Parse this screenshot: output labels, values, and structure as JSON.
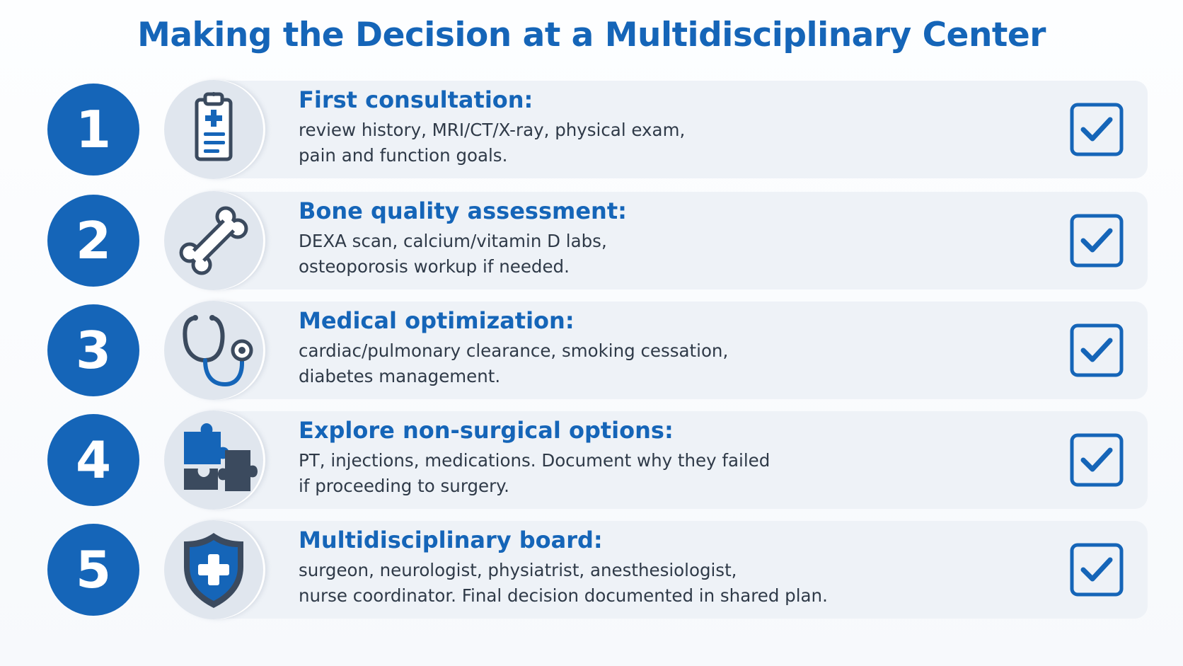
{
  "title": "Making the Decision at a Multidisciplinary Center",
  "steps": [
    {
      "number": "1",
      "icon": "clipboard-icon",
      "heading": "First consultation:",
      "lines": [
        "review history, MRI/CT/X-ray, physical exam,",
        "pain and function goals."
      ]
    },
    {
      "number": "2",
      "icon": "bone-icon",
      "heading": "Bone quality assessment:",
      "lines": [
        "DEXA scan, calcium/vitamin D labs,",
        "osteoporosis workup if needed."
      ]
    },
    {
      "number": "3",
      "icon": "stethoscope-icon",
      "heading": "Medical optimization:",
      "lines": [
        "cardiac/pulmonary clearance, smoking cessation,",
        "diabetes management."
      ]
    },
    {
      "number": "4",
      "icon": "puzzle-icon",
      "heading": "Explore non-surgical options:",
      "lines": [
        "PT, injections, medications. Document why they failed",
        "if proceeding to surgery."
      ]
    },
    {
      "number": "5",
      "icon": "shield-plus-icon",
      "heading": "Multidisciplinary board:",
      "lines": [
        "surgeon, neurologist, physiatrist, anesthesiologist,",
        "nurse coordinator. Final decision documented in shared plan."
      ]
    }
  ],
  "colors": {
    "primary": "#1565b8",
    "card": "#eef2f7",
    "icon_dark": "#3b4a5e",
    "text": "#2f3a48"
  }
}
